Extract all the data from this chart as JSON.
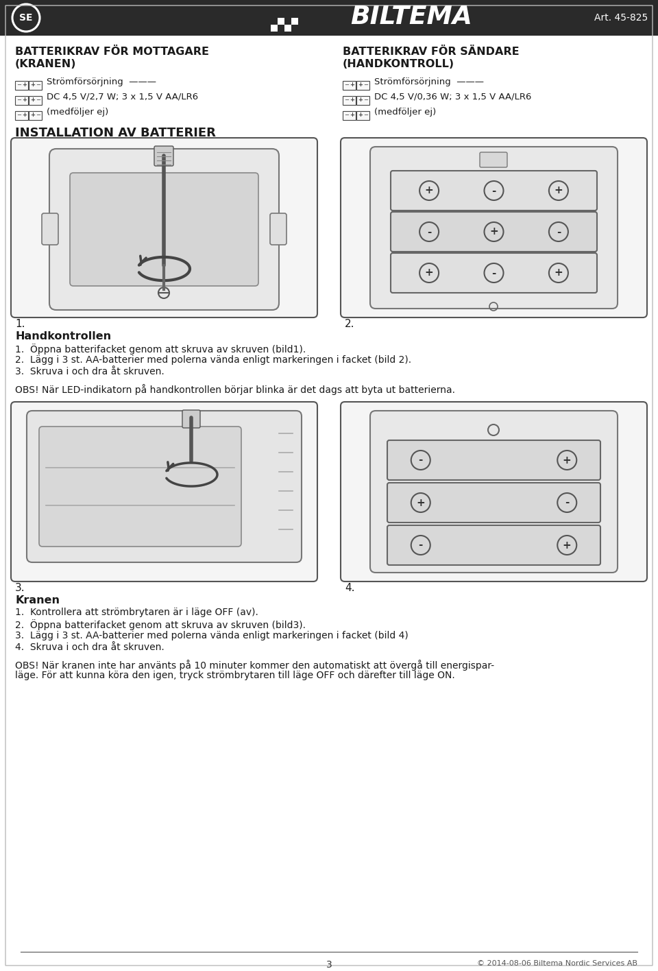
{
  "bg_color": "#ffffff",
  "header_bg": "#2a2a2a",
  "header_text_color": "#ffffff",
  "header_art": "Art. 45-825",
  "header_se": "SE",
  "body_text_color": "#1a1a1a",
  "page_number": "3",
  "footer_copyright": "© 2014-08-06 Biltema Nordic Services AB",
  "left_title_line1": "BATTERIKRAV FÖR MOTTAGARE",
  "left_title_line2": "(KRANEN)",
  "left_specs": [
    "Strömförsörjning  ———",
    "DC 4,5 V/2,7 W; 3 x 1,5 V AA/LR6",
    "(medföljer ej)"
  ],
  "right_title_line1": "BATTERIKRAV FÖR SÄNDARE",
  "right_title_line2": "(HANDKONTROLL)",
  "right_specs": [
    "Strömförsörjning  ———",
    "DC 4,5 V/0,36 W; 3 x 1,5 V AA/LR6",
    "(medföljer ej)"
  ],
  "section_title": "INSTALLATION AV BATTERIER",
  "handkontroll_title": "Handkontrollen",
  "handkontroll_steps": [
    "1.  Öppna batterifacket genom att skruva av skruven (bild1).",
    "2.  Lägg i 3 st. AA-batterier med polerna vända enligt markeringen i facket (bild 2).",
    "3.  Skruva i och dra åt skruven."
  ],
  "handkontroll_obs": "OBS! När LED-indikatorn på handkontrollen börjar blinka är det dags att byta ut batterierna.",
  "kranen_title": "Kranen",
  "kranen_steps": [
    "1.  Kontrollera att strömbrytaren är i läge OFF (av).",
    "2.  Öppna batterifacket genom att skruva av skruven (bild3).",
    "3.  Lägg i 3 st. AA-batterier med polerna vända enligt markeringen i facket (bild 4)",
    "4.  Skruva i och dra åt skruven."
  ],
  "kranen_obs_line1": "OBS! När kranen inte har använts på 10 minuter kommer den automatiskt att övergå till energispar-",
  "kranen_obs_line2": "läge. För att kunna köra den igen, tryck strömbrytaren till läge OFF och därefter till läge ON.",
  "fig_labels": [
    "1.",
    "2.",
    "3.",
    "4."
  ],
  "batt2_rows": [
    [
      "+",
      "-",
      "+"
    ],
    [
      "-",
      "+",
      "-"
    ]
  ],
  "batt4_rows": [
    [
      "-",
      "+"
    ],
    [
      "+",
      "-"
    ],
    [
      "-",
      "+"
    ]
  ]
}
